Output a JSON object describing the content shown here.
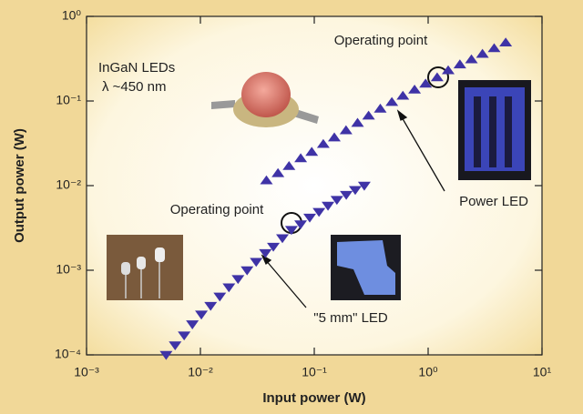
{
  "chart_data": {
    "type": "scatter",
    "x_label": "Input power (W)",
    "y_label": "Output power (W)",
    "xscale": "log",
    "yscale": "log",
    "xlim": [
      0.001,
      10
    ],
    "ylim": [
      0.0001,
      1
    ],
    "xticks": [
      {
        "value": 0.001,
        "label": "10⁻³"
      },
      {
        "value": 0.01,
        "label": "10⁻²"
      },
      {
        "value": 0.1,
        "label": "10⁻¹"
      },
      {
        "value": 1,
        "label": "10⁰"
      },
      {
        "value": 10,
        "label": "10¹"
      }
    ],
    "yticks": [
      {
        "value": 0.0001,
        "label": "10⁻⁴"
      },
      {
        "value": 0.001,
        "label": "10⁻³"
      },
      {
        "value": 0.01,
        "label": "10⁻²"
      },
      {
        "value": 0.1,
        "label": "10⁻¹"
      },
      {
        "value": 1,
        "label": "10⁰"
      }
    ],
    "series": [
      {
        "color": "#3f33a6",
        "marker": "triangle-down",
        "x": [
          0.005,
          0.006,
          0.0072,
          0.0085,
          0.0102,
          0.0123,
          0.0148,
          0.0178,
          0.0214,
          0.0257,
          0.0309,
          0.0372,
          0.0437,
          0.0525,
          0.063,
          0.0759,
          0.0912,
          0.11,
          0.132,
          0.158,
          0.191,
          0.229,
          0.275
        ],
        "values": [
          0.0001,
          0.00013,
          0.00017,
          0.00023,
          0.0003,
          0.00038,
          0.00049,
          0.00063,
          0.00079,
          0.001,
          0.00126,
          0.0016,
          0.0019,
          0.0024,
          0.003,
          0.0035,
          0.0042,
          0.0049,
          0.0058,
          0.0068,
          0.0078,
          0.0089,
          0.01
        ]
      },
      {
        "color": "#3f33a6",
        "marker": "triangle-up",
        "x": [
          0.038,
          0.048,
          0.06,
          0.076,
          0.095,
          0.12,
          0.15,
          0.19,
          0.24,
          0.3,
          0.38,
          0.48,
          0.6,
          0.76,
          0.95,
          1.2,
          1.5,
          1.9,
          2.4,
          3.0,
          3.8,
          4.8
        ],
        "values": [
          0.0115,
          0.014,
          0.017,
          0.021,
          0.025,
          0.031,
          0.037,
          0.045,
          0.055,
          0.067,
          0.081,
          0.097,
          0.115,
          0.136,
          0.16,
          0.19,
          0.23,
          0.27,
          0.31,
          0.36,
          0.42,
          0.49
        ]
      }
    ],
    "annotations": [
      "InGaN LEDs",
      "λ ~450 nm",
      "Operating point",
      "Operating point",
      "Power LED",
      "\"5 mm\" LED"
    ]
  }
}
